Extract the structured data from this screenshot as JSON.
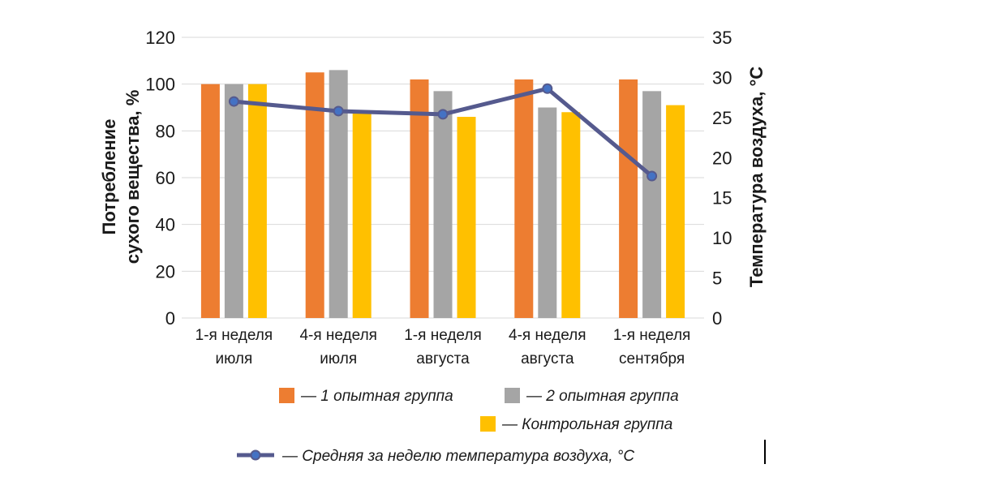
{
  "chart_data": {
    "type": "bar",
    "categories": [
      [
        "1-я неделя",
        "июля"
      ],
      [
        "4-я неделя",
        "июля"
      ],
      [
        "1-я неделя",
        "августа"
      ],
      [
        "4-я неделя",
        "августа"
      ],
      [
        "1-я неделя",
        "сентября"
      ]
    ],
    "series": [
      {
        "name": "— 1 опытная группа",
        "color": "#ED7D31",
        "values": [
          100,
          105,
          102,
          102,
          102
        ]
      },
      {
        "name": "— 2 опытная группа",
        "color": "#A5A5A5",
        "values": [
          100,
          106,
          97,
          90,
          97
        ]
      },
      {
        "name": "— Контрольная группа",
        "color": "#FFC000",
        "values": [
          100,
          88,
          86,
          88,
          91
        ]
      }
    ],
    "line_series": {
      "name": "— Средняя за неделю температура воздуха, °С",
      "type": "line",
      "axis": "right",
      "color": "#555A8E",
      "marker_color": "#4472C4",
      "values": [
        27,
        25.8,
        25.4,
        28.6,
        17.7
      ]
    },
    "ylabel": [
      "Потребление",
      "сухого вещества, %"
    ],
    "ylabel_right": "Температура воздуха, °С",
    "ylim": [
      0,
      120
    ],
    "yticks": [
      "0",
      "20",
      "40",
      "60",
      "80",
      "100",
      "120"
    ],
    "ylim_right": [
      0,
      35
    ],
    "yticks_right": [
      "0",
      "5",
      "10",
      "15",
      "20",
      "25",
      "30",
      "35"
    ],
    "grid": true,
    "legend_position": "bottom"
  }
}
